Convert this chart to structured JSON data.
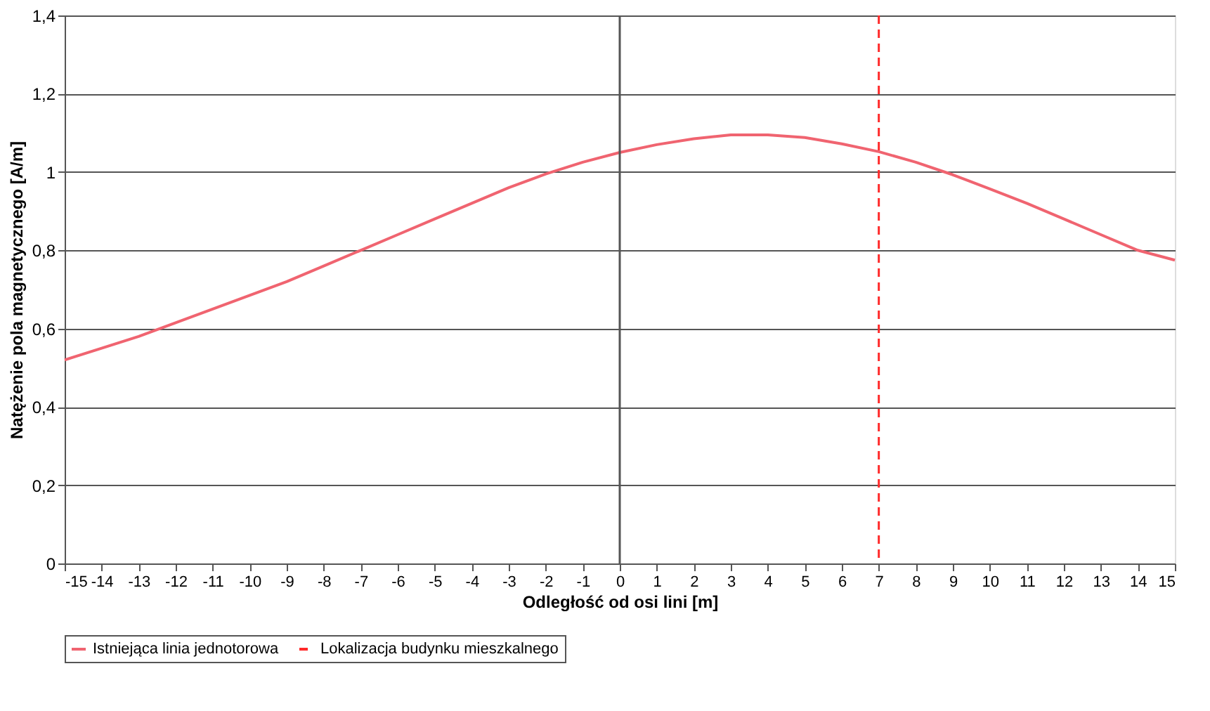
{
  "chart_data": {
    "type": "line",
    "xlabel": "Odległość od osi lini [m]",
    "ylabel": "Natężenie pola magnetycznego [A/m]",
    "x": [
      -15,
      -14,
      -13,
      -12,
      -11,
      -10,
      -9,
      -8,
      -7,
      -6,
      -5,
      -4,
      -3,
      -2,
      -1,
      0,
      1,
      2,
      3,
      4,
      5,
      6,
      7,
      8,
      9,
      10,
      11,
      12,
      13,
      14,
      15
    ],
    "series": [
      {
        "name": "Istniejąca linia jednotorowa",
        "color": "#f06470",
        "values": [
          0.52,
          0.55,
          0.58,
          0.615,
          0.65,
          0.685,
          0.72,
          0.76,
          0.8,
          0.84,
          0.88,
          0.92,
          0.96,
          0.995,
          1.025,
          1.05,
          1.07,
          1.085,
          1.095,
          1.095,
          1.088,
          1.072,
          1.052,
          1.025,
          0.993,
          0.957,
          0.92,
          0.88,
          0.84,
          0.8,
          0.775
        ]
      }
    ],
    "xlim": [
      -15,
      15
    ],
    "xticks": [
      -15,
      -14,
      -13,
      -12,
      -11,
      -10,
      -9,
      -8,
      -7,
      -6,
      -5,
      -4,
      -3,
      -2,
      -1,
      0,
      1,
      2,
      3,
      4,
      5,
      6,
      7,
      8,
      9,
      10,
      11,
      12,
      13,
      14,
      15
    ],
    "ylim": [
      0,
      1.4
    ],
    "yticks": [
      0,
      {
        "value": 0.2,
        "label": "0,2"
      },
      {
        "value": 0.4,
        "label": "0,4"
      },
      {
        "value": 0.6,
        "label": "0,6"
      },
      {
        "value": 0.8,
        "label": "0,8"
      },
      1,
      {
        "value": 1.2,
        "label": "1,2"
      },
      {
        "value": 1.4,
        "label": "1,4"
      }
    ],
    "ref_lines": [
      {
        "axis": "x",
        "value": 0,
        "color": "#555555",
        "line_style": "solid"
      },
      {
        "axis": "x",
        "value": 7,
        "label": "Lokalizacja budynku mieszkalnego",
        "color": "#ff2a2a",
        "line_style": "dashed"
      }
    ],
    "grid": "y",
    "legend": "bottom",
    "line_style": "solid",
    "marker": "none"
  }
}
